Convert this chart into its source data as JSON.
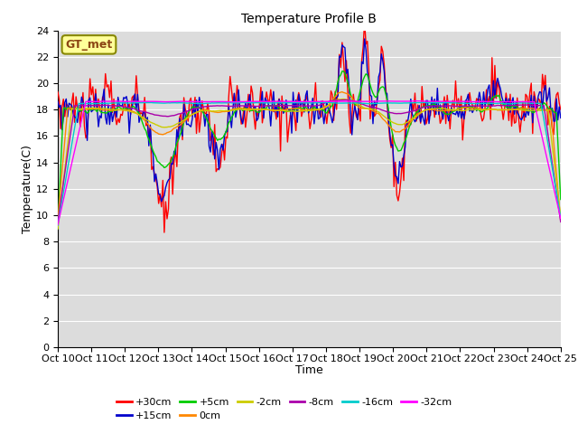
{
  "title": "Temperature Profile B",
  "xlabel": "Time",
  "ylabel": "Temperature(C)",
  "ylim": [
    0,
    24
  ],
  "yticks": [
    0,
    2,
    4,
    6,
    8,
    10,
    12,
    14,
    16,
    18,
    20,
    22,
    24
  ],
  "n_points": 360,
  "n_days": 15,
  "series_colors": {
    "+30cm": "#ff0000",
    "+15cm": "#0000cc",
    "+5cm": "#00cc00",
    "0cm": "#ff8800",
    "-2cm": "#cccc00",
    "-8cm": "#aa00aa",
    "-16cm": "#00cccc",
    "-32cm": "#ff00ff"
  },
  "legend_labels": [
    "+30cm",
    "+15cm",
    "+5cm",
    "0cm",
    "-2cm",
    "-8cm",
    "-16cm",
    "-32cm"
  ],
  "plot_bg_color": "#dcdcdc",
  "fig_bg_color": "#ffffff",
  "grid_color": "#ffffff",
  "annotation_text": "GT_met",
  "annotation_bg": "#ffff99",
  "annotation_border": "#888800",
  "tick_labels": [
    "Oct 10",
    "Oct 11",
    "Oct 12",
    "Oct 13",
    "Oct 14",
    "Oct 15",
    "Oct 16",
    "Oct 17",
    "Oct 18",
    "Oct 19",
    "Oct 20",
    "Oct 21",
    "Oct 22",
    "Oct 23",
    "Oct 24",
    "Oct 25"
  ],
  "title_fontsize": 10,
  "axis_label_fontsize": 9,
  "tick_fontsize": 8,
  "legend_fontsize": 8
}
